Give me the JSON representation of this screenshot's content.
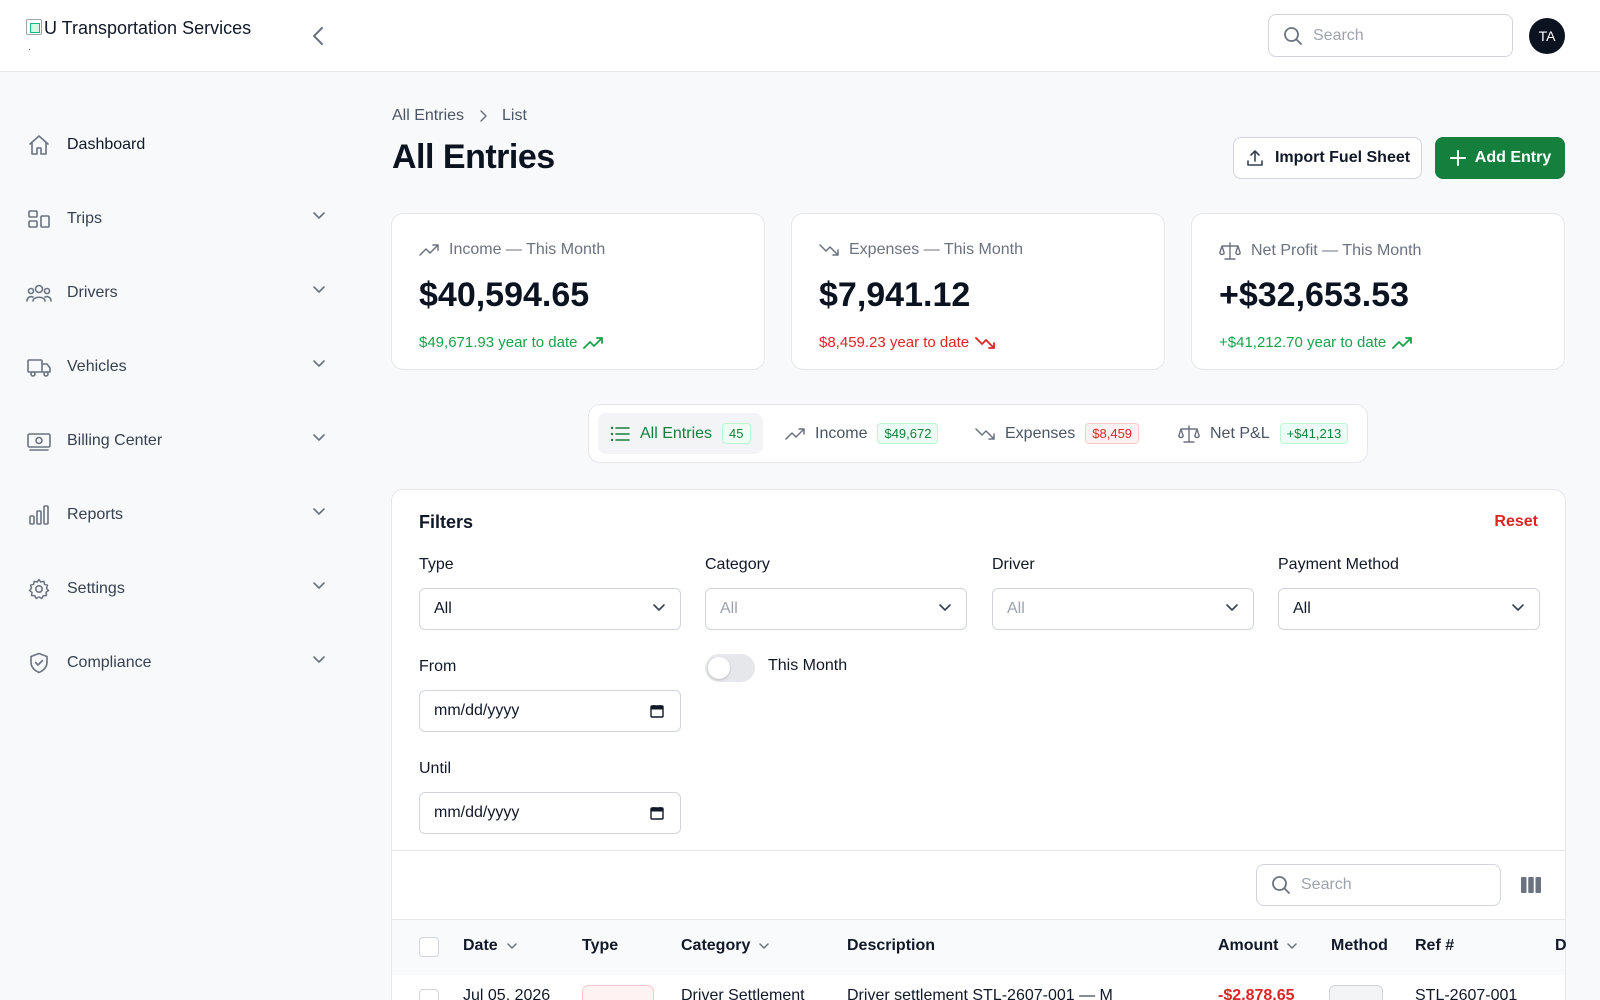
{
  "app": {
    "brand": "U Transportation Services",
    "brand_dot": ".",
    "search_placeholder": "Search",
    "avatar_initials": "TA"
  },
  "sidebar": {
    "items": [
      {
        "label": "Dashboard",
        "icon": "home-icon"
      },
      {
        "label": "Trips",
        "icon": "trips-icon"
      },
      {
        "label": "Drivers",
        "icon": "users-icon"
      },
      {
        "label": "Vehicles",
        "icon": "truck-icon"
      },
      {
        "label": "Billing Center",
        "icon": "billing-icon"
      },
      {
        "label": "Reports",
        "icon": "bar-chart-icon"
      },
      {
        "label": "Settings",
        "icon": "gear-icon"
      },
      {
        "label": "Compliance",
        "icon": "shield-icon"
      }
    ]
  },
  "breadcrumb": {
    "root": "All Entries",
    "current": "List"
  },
  "page": {
    "title": "All Entries",
    "import_label": "Import Fuel Sheet",
    "add_label": "Add Entry"
  },
  "stats": {
    "income": {
      "title": "Income — This Month",
      "value": "$40,594.65",
      "ytd": "$49,671.93 year to date"
    },
    "expenses": {
      "title": "Expenses — This Month",
      "value": "$7,941.12",
      "ytd": "$8,459.23 year to date"
    },
    "net": {
      "title": "Net Profit — This Month",
      "value": "+$32,653.53",
      "ytd": "+$41,212.70 year to date"
    }
  },
  "tabs": [
    {
      "label": "All Entries",
      "badge": "45"
    },
    {
      "label": "Income",
      "badge": "$49,672"
    },
    {
      "label": "Expenses",
      "badge": "$8,459"
    },
    {
      "label": "Net P&L",
      "badge": "+$41,213"
    }
  ],
  "filters": {
    "title": "Filters",
    "reset": "Reset",
    "type_label": "Type",
    "type_value": "All",
    "category_label": "Category",
    "category_value": "All",
    "driver_label": "Driver",
    "driver_value": "All",
    "payment_label": "Payment Method",
    "payment_value": "All",
    "from_label": "From",
    "from_value": "mm/dd/yyyy",
    "until_label": "Until",
    "until_value": "mm/dd/yyyy",
    "this_month_label": "This Month"
  },
  "table": {
    "search_placeholder": "Search",
    "columns": [
      "Date",
      "Type",
      "Category",
      "Description",
      "Amount",
      "Method",
      "Ref #",
      "D"
    ],
    "first_row": {
      "date": "Jul 05, 2026",
      "category": "Driver Settlement",
      "description": "Driver settlement STL-2607-001 — M",
      "amount": "-$2,878.65",
      "ref": "STL-2607-001"
    }
  },
  "colors": {
    "accent": "#15803d",
    "negative": "#dc2626",
    "avatar_bg": "#0b1220"
  }
}
